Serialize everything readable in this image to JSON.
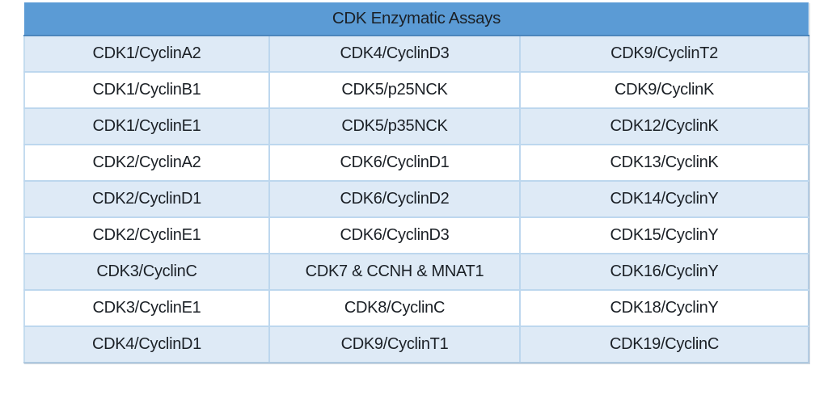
{
  "table": {
    "title": "CDK Enzymatic Assays",
    "rows": [
      [
        "CDK1/CyclinA2",
        "CDK4/CyclinD3",
        "CDK9/CyclinT2"
      ],
      [
        "CDK1/CyclinB1",
        "CDK5/p25NCK",
        "CDK9/CyclinK"
      ],
      [
        "CDK1/CyclinE1",
        "CDK5/p35NCK",
        "CDK12/CyclinK"
      ],
      [
        "CDK2/CyclinA2",
        "CDK6/CyclinD1",
        "CDK13/CyclinK"
      ],
      [
        "CDK2/CyclinD1",
        "CDK6/CyclinD2",
        "CDK14/CyclinY"
      ],
      [
        "CDK2/CyclinE1",
        "CDK6/CyclinD3",
        "CDK15/CyclinY"
      ],
      [
        "CDK3/CyclinC",
        "CDK7 & CCNH & MNAT1",
        "CDK16/CyclinY"
      ],
      [
        "CDK3/CyclinE1",
        "CDK8/CyclinC",
        "CDK18/CyclinY"
      ],
      [
        "CDK4/CyclinD1",
        "CDK9/CyclinT1",
        "CDK19/CyclinC"
      ]
    ],
    "colors": {
      "header_bg": "#5B9BD5",
      "header_border": "#4C86BC",
      "row_alt_bg": "#DEEAF6",
      "row_bg": "#FFFFFF",
      "grid_border": "#BDD7EE",
      "text": "#1B2026"
    }
  }
}
